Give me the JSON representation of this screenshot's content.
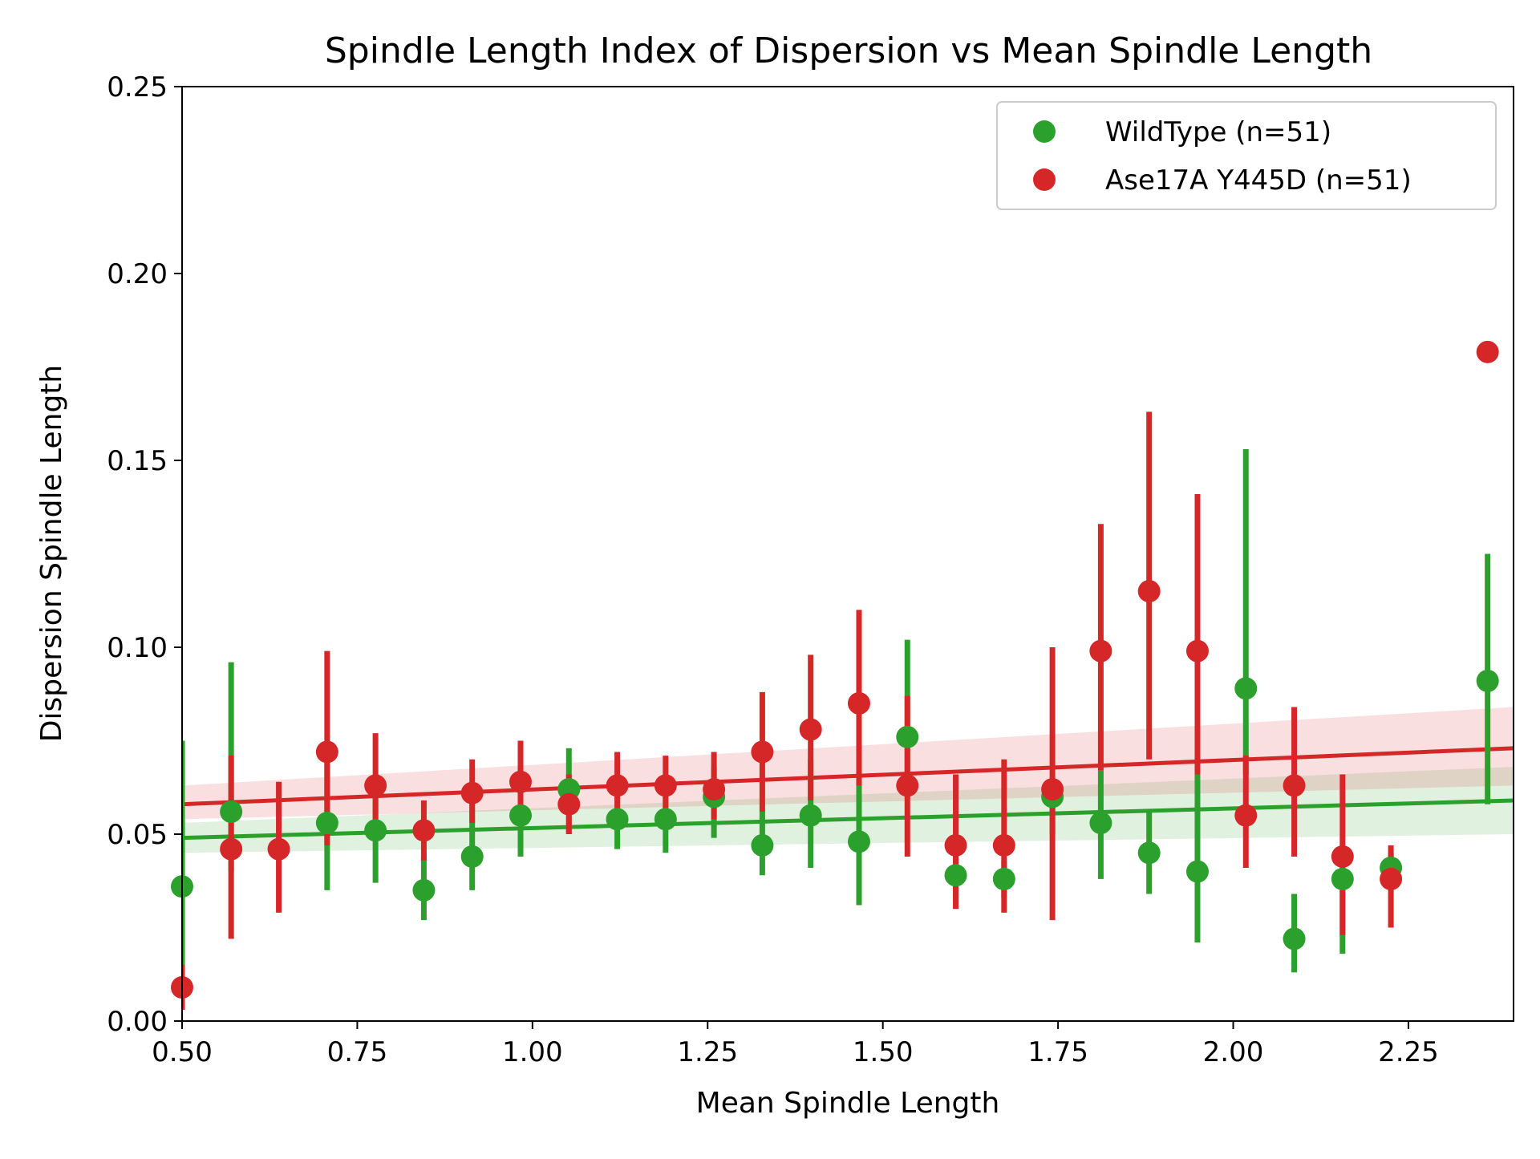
{
  "chart_data": {
    "type": "scatter",
    "title": "Spindle Length Index of Dispersion vs Mean Spindle Length",
    "xlabel": "Mean Spindle Length",
    "ylabel": "Dispersion Spindle Length",
    "xlim": [
      0.5,
      2.4
    ],
    "ylim": [
      0.0,
      0.25
    ],
    "x_ticks": [
      0.5,
      0.75,
      1.0,
      1.25,
      1.5,
      1.75,
      2.0,
      2.25
    ],
    "x_tick_labels": [
      "0.50",
      "0.75",
      "1.00",
      "1.25",
      "1.50",
      "1.75",
      "2.00",
      "2.25"
    ],
    "y_ticks": [
      0.0,
      0.05,
      0.1,
      0.15,
      0.2,
      0.25
    ],
    "y_tick_labels": [
      "0.00",
      "0.05",
      "0.10",
      "0.15",
      "0.20",
      "0.25"
    ],
    "grid": false,
    "legend_position": "top-right",
    "series": [
      {
        "name": "WildType (n=51)",
        "color": "#2ca02c",
        "band_color": "#2ca02c",
        "fit": {
          "y_at_xmin": 0.049,
          "y_at_xmax": 0.059,
          "ci_low_at_xmax": 0.05,
          "ci_high_at_xmax": 0.068,
          "ci_low_at_xmin": 0.045,
          "ci_high_at_xmin": 0.053
        },
        "points": [
          {
            "x": 0.5,
            "y": 0.036,
            "lo": 0.005,
            "hi": 0.075
          },
          {
            "x": 0.57,
            "y": 0.056,
            "lo": 0.04,
            "hi": 0.096
          },
          {
            "x": 0.707,
            "y": 0.053,
            "lo": 0.035,
            "hi": 0.07
          },
          {
            "x": 0.776,
            "y": 0.051,
            "lo": 0.037,
            "hi": 0.063
          },
          {
            "x": 0.845,
            "y": 0.035,
            "lo": 0.027,
            "hi": 0.044
          },
          {
            "x": 0.914,
            "y": 0.044,
            "lo": 0.035,
            "hi": 0.062
          },
          {
            "x": 0.983,
            "y": 0.055,
            "lo": 0.044,
            "hi": 0.064
          },
          {
            "x": 1.052,
            "y": 0.062,
            "lo": 0.05,
            "hi": 0.073
          },
          {
            "x": 1.121,
            "y": 0.054,
            "lo": 0.046,
            "hi": 0.062
          },
          {
            "x": 1.19,
            "y": 0.054,
            "lo": 0.045,
            "hi": 0.062
          },
          {
            "x": 1.259,
            "y": 0.06,
            "lo": 0.049,
            "hi": 0.068
          },
          {
            "x": 1.328,
            "y": 0.047,
            "lo": 0.039,
            "hi": 0.056
          },
          {
            "x": 1.397,
            "y": 0.055,
            "lo": 0.041,
            "hi": 0.07
          },
          {
            "x": 1.466,
            "y": 0.048,
            "lo": 0.031,
            "hi": 0.064
          },
          {
            "x": 1.535,
            "y": 0.076,
            "lo": 0.065,
            "hi": 0.102
          },
          {
            "x": 1.604,
            "y": 0.039,
            "lo": 0.033,
            "hi": 0.045
          },
          {
            "x": 1.673,
            "y": 0.038,
            "lo": 0.033,
            "hi": 0.043
          },
          {
            "x": 1.742,
            "y": 0.06,
            "lo": 0.05,
            "hi": 0.064
          },
          {
            "x": 1.811,
            "y": 0.053,
            "lo": 0.038,
            "hi": 0.067
          },
          {
            "x": 1.88,
            "y": 0.045,
            "lo": 0.034,
            "hi": 0.056
          },
          {
            "x": 1.949,
            "y": 0.04,
            "lo": 0.021,
            "hi": 0.066
          },
          {
            "x": 2.018,
            "y": 0.089,
            "lo": 0.066,
            "hi": 0.153
          },
          {
            "x": 2.087,
            "y": 0.022,
            "lo": 0.013,
            "hi": 0.034
          },
          {
            "x": 2.156,
            "y": 0.038,
            "lo": 0.018,
            "hi": 0.045
          },
          {
            "x": 2.225,
            "y": 0.041,
            "lo": 0.036,
            "hi": 0.045
          },
          {
            "x": 2.363,
            "y": 0.091,
            "lo": 0.058,
            "hi": 0.125
          }
        ]
      },
      {
        "name": "Ase17A Y445D (n=51)",
        "color": "#d62728",
        "band_color": "#d62728",
        "fit": {
          "y_at_xmin": 0.058,
          "y_at_xmax": 0.073,
          "ci_low_at_xmax": 0.063,
          "ci_high_at_xmax": 0.084,
          "ci_low_at_xmin": 0.054,
          "ci_high_at_xmin": 0.063
        },
        "points": [
          {
            "x": 0.5,
            "y": 0.009,
            "lo": 0.003,
            "hi": 0.015
          },
          {
            "x": 0.57,
            "y": 0.046,
            "lo": 0.022,
            "hi": 0.071
          },
          {
            "x": 0.638,
            "y": 0.046,
            "lo": 0.029,
            "hi": 0.064
          },
          {
            "x": 0.707,
            "y": 0.072,
            "lo": 0.047,
            "hi": 0.099
          },
          {
            "x": 0.776,
            "y": 0.063,
            "lo": 0.05,
            "hi": 0.077
          },
          {
            "x": 0.845,
            "y": 0.051,
            "lo": 0.043,
            "hi": 0.059
          },
          {
            "x": 0.914,
            "y": 0.061,
            "lo": 0.053,
            "hi": 0.07
          },
          {
            "x": 0.983,
            "y": 0.064,
            "lo": 0.054,
            "hi": 0.075
          },
          {
            "x": 1.052,
            "y": 0.058,
            "lo": 0.05,
            "hi": 0.066
          },
          {
            "x": 1.121,
            "y": 0.063,
            "lo": 0.056,
            "hi": 0.072
          },
          {
            "x": 1.19,
            "y": 0.063,
            "lo": 0.055,
            "hi": 0.071
          },
          {
            "x": 1.259,
            "y": 0.062,
            "lo": 0.054,
            "hi": 0.072
          },
          {
            "x": 1.328,
            "y": 0.072,
            "lo": 0.056,
            "hi": 0.088
          },
          {
            "x": 1.397,
            "y": 0.078,
            "lo": 0.059,
            "hi": 0.098
          },
          {
            "x": 1.466,
            "y": 0.085,
            "lo": 0.063,
            "hi": 0.11
          },
          {
            "x": 1.535,
            "y": 0.063,
            "lo": 0.044,
            "hi": 0.087
          },
          {
            "x": 1.604,
            "y": 0.047,
            "lo": 0.03,
            "hi": 0.066
          },
          {
            "x": 1.673,
            "y": 0.047,
            "lo": 0.029,
            "hi": 0.07
          },
          {
            "x": 1.742,
            "y": 0.062,
            "lo": 0.027,
            "hi": 0.1
          },
          {
            "x": 1.811,
            "y": 0.099,
            "lo": 0.067,
            "hi": 0.133
          },
          {
            "x": 1.88,
            "y": 0.115,
            "lo": 0.07,
            "hi": 0.163
          },
          {
            "x": 1.949,
            "y": 0.099,
            "lo": 0.066,
            "hi": 0.141
          },
          {
            "x": 2.018,
            "y": 0.055,
            "lo": 0.041,
            "hi": 0.071
          },
          {
            "x": 2.087,
            "y": 0.063,
            "lo": 0.044,
            "hi": 0.084
          },
          {
            "x": 2.156,
            "y": 0.044,
            "lo": 0.023,
            "hi": 0.066
          },
          {
            "x": 2.225,
            "y": 0.038,
            "lo": 0.025,
            "hi": 0.047
          },
          {
            "x": 2.363,
            "y": 0.179,
            "lo": null,
            "hi": null
          }
        ]
      }
    ]
  }
}
